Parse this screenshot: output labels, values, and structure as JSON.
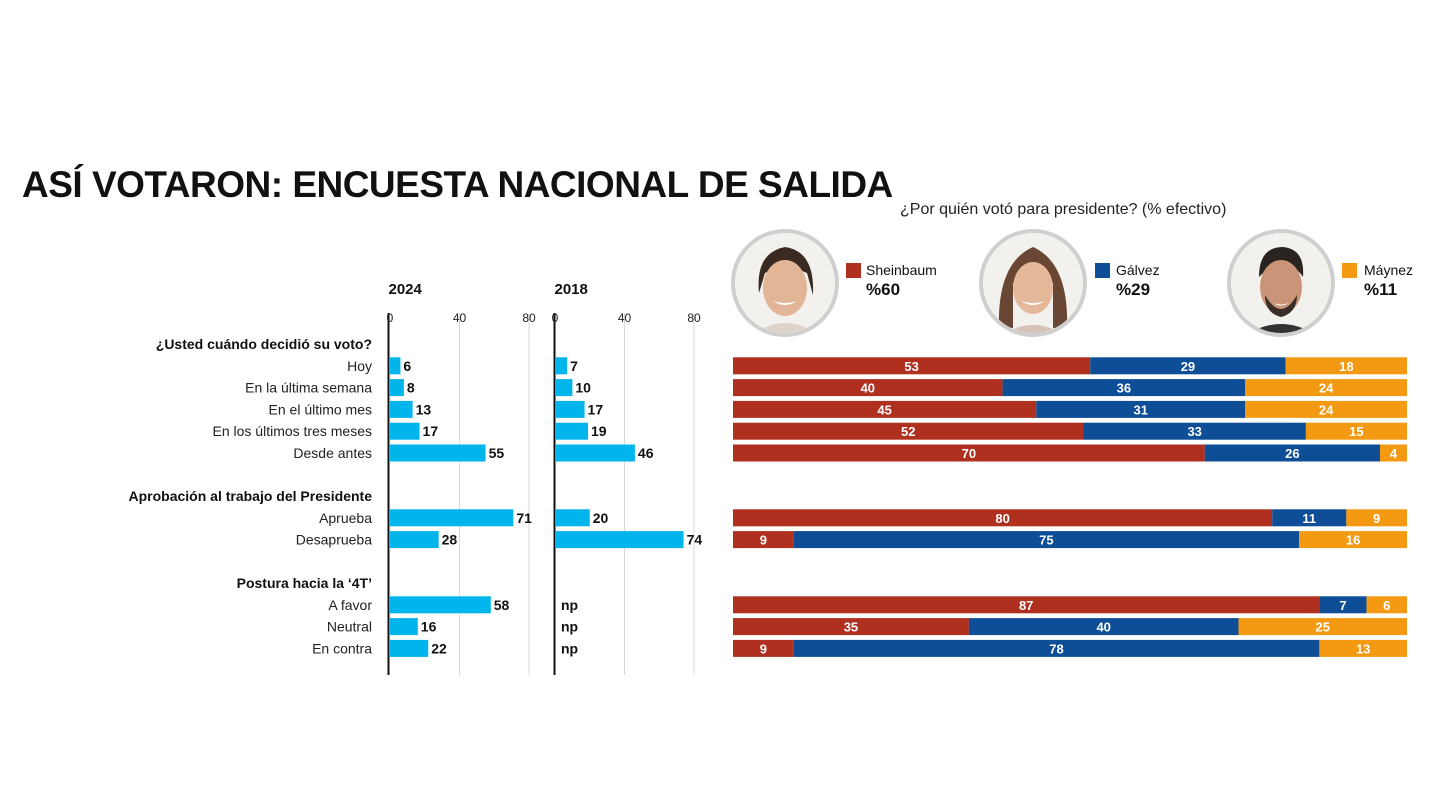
{
  "title": "ASÍ VOTARON: ENCUESTA NACIONAL DE SALIDA",
  "question": "¿Por quién votó para presidente? (% efectivo)",
  "colors": {
    "sheinbaum": "#b03020",
    "galvez": "#0e4e96",
    "maynez": "#f39a12",
    "bar": "#00b4ec"
  },
  "candidates": [
    {
      "name": "Sheinbaum",
      "pct": "%60",
      "color": "#b03020"
    },
    {
      "name": "Gálvez",
      "pct": "%29",
      "color": "#0e4e96"
    },
    {
      "name": "Máynez",
      "pct": "%11",
      "color": "#f39a12"
    }
  ],
  "chart_data": {
    "type": "bar",
    "panels": [
      {
        "year": "2024",
        "ticks": [
          "0",
          "40",
          "80"
        ],
        "xlim": [
          0,
          80
        ]
      },
      {
        "year": "2018",
        "ticks": [
          "0",
          "40",
          "80"
        ],
        "xlim": [
          0,
          80
        ]
      }
    ],
    "groups": [
      {
        "heading": "¿Usted cuándo decidió su voto?",
        "rows": [
          {
            "label": "Hoy",
            "v2024": 6,
            "v2018": 7,
            "split": [
              53,
              29,
              18
            ]
          },
          {
            "label": "En la última semana",
            "v2024": 8,
            "v2018": 10,
            "split": [
              40,
              36,
              24
            ]
          },
          {
            "label": "En el último mes",
            "v2024": 13,
            "v2018": 17,
            "split": [
              45,
              31,
              24
            ]
          },
          {
            "label": "En los últimos tres meses",
            "v2024": 17,
            "v2018": 19,
            "split": [
              52,
              33,
              15
            ]
          },
          {
            "label": "Desde antes",
            "v2024": 55,
            "v2018": 46,
            "split": [
              70,
              26,
              4
            ]
          }
        ]
      },
      {
        "heading": "Aprobación al trabajo del Presidente",
        "rows": [
          {
            "label": "Aprueba",
            "v2024": 71,
            "v2018": 20,
            "split": [
              80,
              11,
              9
            ]
          },
          {
            "label": "Desaprueba",
            "v2024": 28,
            "v2018": 74,
            "split": [
              9,
              75,
              16
            ]
          }
        ]
      },
      {
        "heading": "Postura hacia la ‘4T’",
        "rows": [
          {
            "label": "A favor",
            "v2024": 58,
            "v2018": "np",
            "split": [
              87,
              7,
              6
            ]
          },
          {
            "label": "Neutral",
            "v2024": 16,
            "v2018": "np",
            "split": [
              35,
              40,
              25
            ]
          },
          {
            "label": "En contra",
            "v2024": 22,
            "v2018": "np",
            "split": [
              9,
              78,
              13
            ]
          }
        ]
      }
    ],
    "split_series": [
      "Sheinbaum",
      "Gálvez",
      "Máynez"
    ]
  }
}
